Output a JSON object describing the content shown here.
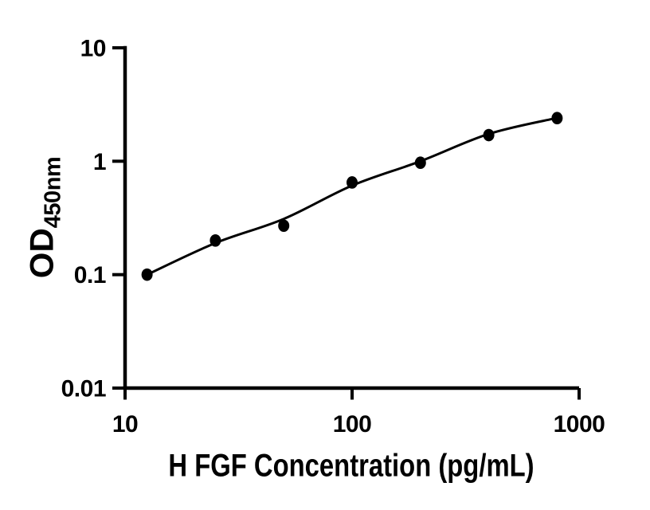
{
  "figure": {
    "background_color": "#ffffff",
    "ink_color": "#000000"
  },
  "chart_data": {
    "type": "scatter",
    "title": "",
    "xlabel": "H FGF Concentration (pg/mL)",
    "ylabel_main": "OD",
    "ylabel_subscript": "450nm",
    "x_scale": "log",
    "y_scale": "log",
    "xlim": [
      10,
      1000
    ],
    "ylim": [
      0.01,
      10
    ],
    "x_ticks": [
      10,
      100,
      1000
    ],
    "y_ticks": [
      10,
      1,
      0.1,
      0.01
    ],
    "x_tick_labels": [
      "10",
      "100",
      "1000"
    ],
    "y_tick_labels": [
      "10",
      "1",
      "0.1",
      "0.01"
    ],
    "grid": false,
    "legend": "none",
    "marker_color": "#000000",
    "line_color": "#000000",
    "series": [
      {
        "name": "standard-points",
        "type": "scatter",
        "marker": "filled-circle",
        "x": [
          12.5,
          25,
          50,
          100,
          200,
          400,
          800
        ],
        "y": [
          0.1,
          0.2,
          0.27,
          0.65,
          0.97,
          1.7,
          2.4
        ]
      },
      {
        "name": "fitted-curve",
        "type": "line",
        "x": [
          12.5,
          25,
          50,
          100,
          200,
          400,
          800
        ],
        "y": [
          0.1,
          0.19,
          0.31,
          0.61,
          1.0,
          1.74,
          2.41
        ]
      }
    ]
  }
}
